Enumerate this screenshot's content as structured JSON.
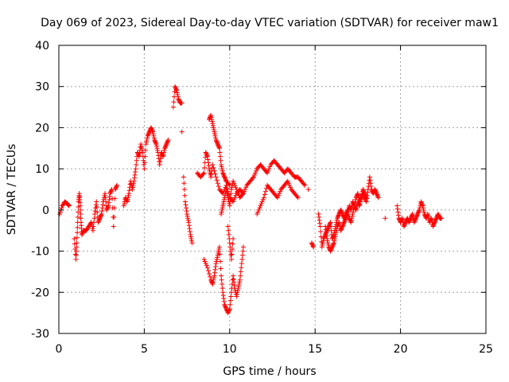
{
  "chart_data": {
    "type": "scatter",
    "marker": "+",
    "title": "Day 069 of 2023, Sidereal Day-to-day VTEC variation (SDTVAR) for receiver maw1",
    "xlabel": "GPS time / hours",
    "ylabel": "SDTVAR / TECUs",
    "xlim": [
      0,
      25
    ],
    "ylim": [
      -30,
      40
    ],
    "xticks": [
      0,
      5,
      10,
      15,
      20,
      25
    ],
    "yticks": [
      -30,
      -20,
      -10,
      0,
      10,
      20,
      30,
      40
    ],
    "grid": true,
    "series": [
      {
        "name": "SDTVAR",
        "color": "#ff0000",
        "segments": [
          [
            [
              0.05,
              -1
            ],
            [
              0.2,
              1
            ],
            [
              0.35,
              2
            ],
            [
              0.5,
              1.5
            ],
            [
              0.6,
              1
            ]
          ],
          [
            [
              0.9,
              -7
            ],
            [
              1.0,
              -12
            ],
            [
              1.05,
              -8
            ],
            [
              1.1,
              -3
            ],
            [
              1.15,
              2
            ],
            [
              1.2,
              4
            ],
            [
              1.25,
              1
            ],
            [
              1.3,
              -3
            ],
            [
              1.35,
              -6
            ],
            [
              1.45,
              -5
            ],
            [
              1.6,
              -5
            ],
            [
              1.75,
              -4
            ],
            [
              1.9,
              -3
            ],
            [
              2.0,
              -5
            ],
            [
              2.1,
              -1
            ],
            [
              2.2,
              2
            ],
            [
              2.3,
              -3
            ],
            [
              2.4,
              -2
            ],
            [
              2.5,
              -1
            ],
            [
              2.6,
              2
            ],
            [
              2.7,
              4
            ],
            [
              2.8,
              0
            ],
            [
              2.9,
              1
            ],
            [
              3.0,
              4
            ],
            [
              3.1,
              5
            ],
            [
              3.2,
              -4
            ],
            [
              3.3,
              5
            ],
            [
              3.4,
              6
            ]
          ],
          [
            [
              3.8,
              1
            ],
            [
              3.9,
              3
            ],
            [
              4.0,
              2
            ],
            [
              4.1,
              4
            ],
            [
              4.2,
              7
            ],
            [
              4.3,
              5
            ],
            [
              4.4,
              7
            ],
            [
              4.5,
              10
            ],
            [
              4.6,
              14
            ],
            [
              4.7,
              13
            ],
            [
              4.8,
              16
            ],
            [
              4.9,
              14
            ],
            [
              5.0,
              10
            ],
            [
              5.1,
              16
            ],
            [
              5.2,
              18
            ],
            [
              5.3,
              19
            ],
            [
              5.4,
              20
            ],
            [
              5.5,
              19
            ],
            [
              5.6,
              17
            ],
            [
              5.7,
              16
            ],
            [
              5.8,
              14
            ],
            [
              5.9,
              11
            ],
            [
              6.0,
              14
            ],
            [
              6.1,
              13
            ],
            [
              6.2,
              15
            ],
            [
              6.3,
              16
            ],
            [
              6.4,
              17
            ]
          ],
          [
            [
              6.7,
              25
            ],
            [
              6.8,
              30
            ],
            [
              6.9,
              29
            ],
            [
              7.0,
              27
            ],
            [
              7.1,
              26
            ],
            [
              7.2,
              26
            ]
          ],
          [
            [
              7.2,
              19
            ]
          ],
          [
            [
              7.3,
              8
            ],
            [
              7.4,
              2
            ],
            [
              7.5,
              -1
            ],
            [
              7.6,
              -3
            ],
            [
              7.7,
              -6
            ],
            [
              7.8,
              -8
            ]
          ],
          [
            [
              8.1,
              9
            ],
            [
              8.3,
              8
            ],
            [
              8.5,
              9
            ],
            [
              8.6,
              14
            ],
            [
              8.7,
              13
            ],
            [
              8.8,
              10
            ],
            [
              8.9,
              8
            ],
            [
              9.0,
              11
            ],
            [
              9.2,
              8
            ],
            [
              9.4,
              5
            ],
            [
              9.6,
              4
            ],
            [
              9.8,
              6
            ],
            [
              10.0,
              3
            ],
            [
              10.2,
              2
            ],
            [
              10.4,
              4
            ],
            [
              10.6,
              5
            ],
            [
              10.8,
              4
            ]
          ],
          [
            [
              8.8,
              22
            ],
            [
              8.9,
              23
            ],
            [
              9.0,
              21
            ],
            [
              9.1,
              19
            ],
            [
              9.2,
              17
            ],
            [
              9.3,
              16
            ],
            [
              9.4,
              15
            ],
            [
              9.5,
              11
            ],
            [
              9.6,
              9
            ],
            [
              9.7,
              8
            ],
            [
              9.8,
              7
            ],
            [
              10.0,
              6
            ]
          ],
          [
            [
              8.5,
              -12
            ],
            [
              8.7,
              -14
            ],
            [
              8.9,
              -17
            ],
            [
              9.0,
              -18
            ],
            [
              9.1,
              -16
            ],
            [
              9.2,
              -13
            ],
            [
              9.3,
              -11
            ],
            [
              9.4,
              -9
            ],
            [
              9.5,
              -16
            ],
            [
              9.6,
              -20
            ],
            [
              9.7,
              -23
            ],
            [
              9.8,
              -24
            ],
            [
              9.9,
              -25
            ],
            [
              10.0,
              -24
            ],
            [
              10.1,
              -20
            ],
            [
              10.2,
              -16
            ],
            [
              10.3,
              -19
            ],
            [
              10.4,
              -21
            ],
            [
              10.5,
              -19
            ],
            [
              10.6,
              -17
            ],
            [
              10.7,
              -13
            ],
            [
              10.8,
              -9
            ]
          ],
          [
            [
              9.9,
              -4
            ],
            [
              10.0,
              -8
            ],
            [
              10.1,
              -12
            ],
            [
              10.2,
              -7
            ]
          ],
          [
            [
              9.5,
              -1
            ],
            [
              9.6,
              1
            ],
            [
              9.7,
              3
            ],
            [
              9.8,
              5
            ],
            [
              9.9,
              3
            ],
            [
              10.0,
              1
            ],
            [
              10.1,
              5
            ],
            [
              10.2,
              7
            ],
            [
              10.4,
              5
            ],
            [
              10.6,
              3
            ],
            [
              10.8,
              4
            ],
            [
              11.0,
              6
            ],
            [
              11.2,
              7
            ],
            [
              11.4,
              8
            ],
            [
              11.6,
              10
            ],
            [
              11.8,
              11
            ],
            [
              12.0,
              10
            ],
            [
              12.2,
              9
            ],
            [
              12.4,
              11
            ],
            [
              12.6,
              12
            ],
            [
              12.8,
              11
            ],
            [
              13.0,
              10
            ],
            [
              13.2,
              9
            ],
            [
              13.4,
              10
            ],
            [
              13.6,
              9
            ],
            [
              13.8,
              8
            ],
            [
              14.0,
              8
            ],
            [
              14.2,
              7
            ],
            [
              14.4,
              6
            ]
          ],
          [
            [
              11.6,
              -1
            ],
            [
              11.8,
              1
            ],
            [
              12.0,
              3
            ],
            [
              12.2,
              6
            ],
            [
              12.4,
              5
            ],
            [
              12.6,
              4
            ],
            [
              12.8,
              3
            ],
            [
              13.0,
              5
            ],
            [
              13.2,
              6
            ],
            [
              13.4,
              7
            ],
            [
              13.6,
              5
            ],
            [
              13.8,
              4
            ],
            [
              14.0,
              3
            ]
          ],
          [
            [
              14.6,
              5
            ]
          ],
          [
            [
              14.8,
              -8
            ],
            [
              14.9,
              -9
            ]
          ],
          [
            [
              15.2,
              -1
            ],
            [
              15.3,
              -4
            ],
            [
              15.4,
              -9
            ],
            [
              15.5,
              -7
            ],
            [
              15.6,
              -6
            ],
            [
              15.7,
              -5
            ],
            [
              15.8,
              -4
            ],
            [
              15.9,
              -3
            ],
            [
              16.0,
              -7
            ],
            [
              16.1,
              -6
            ],
            [
              16.2,
              -4
            ],
            [
              16.3,
              -2
            ],
            [
              16.4,
              -1
            ],
            [
              16.5,
              0
            ],
            [
              16.6,
              -1
            ],
            [
              16.7,
              -2
            ],
            [
              16.8,
              -1
            ],
            [
              16.9,
              0
            ],
            [
              17.0,
              -2
            ],
            [
              17.1,
              -3
            ],
            [
              17.2,
              -1
            ],
            [
              17.3,
              1
            ],
            [
              17.4,
              0
            ],
            [
              17.5,
              2
            ],
            [
              17.6,
              1
            ],
            [
              17.7,
              3
            ],
            [
              17.8,
              4
            ],
            [
              17.9,
              3
            ],
            [
              18.0,
              2
            ],
            [
              18.1,
              5
            ],
            [
              18.2,
              8
            ],
            [
              18.3,
              5
            ],
            [
              18.4,
              4
            ],
            [
              18.5,
              5
            ],
            [
              18.6,
              4
            ],
            [
              18.7,
              3
            ]
          ],
          [
            [
              15.6,
              -4
            ],
            [
              15.7,
              -7
            ],
            [
              15.8,
              -9
            ],
            [
              15.9,
              -10
            ],
            [
              16.0,
              -9
            ],
            [
              16.1,
              -8
            ],
            [
              16.2,
              -6
            ],
            [
              16.3,
              -4
            ],
            [
              16.4,
              -3
            ],
            [
              16.5,
              -5
            ],
            [
              16.6,
              -4
            ],
            [
              16.7,
              -3
            ],
            [
              16.8,
              -2
            ],
            [
              16.9,
              -1
            ],
            [
              17.0,
              1
            ],
            [
              17.1,
              0
            ],
            [
              17.2,
              2
            ],
            [
              17.3,
              1
            ],
            [
              17.4,
              3
            ],
            [
              17.5,
              4
            ],
            [
              17.6,
              2
            ],
            [
              17.7,
              3
            ],
            [
              17.8,
              5
            ],
            [
              17.9,
              4
            ],
            [
              18.0,
              3
            ]
          ],
          [
            [
              19.1,
              -2
            ]
          ],
          [
            [
              19.8,
              1
            ],
            [
              19.9,
              -2
            ],
            [
              20.0,
              -3
            ],
            [
              20.1,
              -2
            ],
            [
              20.2,
              -4
            ],
            [
              20.3,
              -3
            ],
            [
              20.4,
              -2
            ],
            [
              20.5,
              -3
            ],
            [
              20.6,
              -2
            ],
            [
              20.7,
              -1
            ],
            [
              20.8,
              -3
            ],
            [
              20.9,
              -2
            ],
            [
              21.0,
              -1
            ],
            [
              21.1,
              0
            ],
            [
              21.2,
              2
            ],
            [
              21.3,
              1
            ],
            [
              21.4,
              -1
            ],
            [
              21.5,
              -2
            ],
            [
              21.6,
              -1
            ],
            [
              21.7,
              -3
            ],
            [
              21.8,
              -2
            ],
            [
              21.9,
              -4
            ],
            [
              22.0,
              -3
            ],
            [
              22.1,
              -2
            ],
            [
              22.2,
              -1
            ],
            [
              22.3,
              -2
            ],
            [
              22.4,
              -2
            ]
          ]
        ]
      }
    ]
  }
}
